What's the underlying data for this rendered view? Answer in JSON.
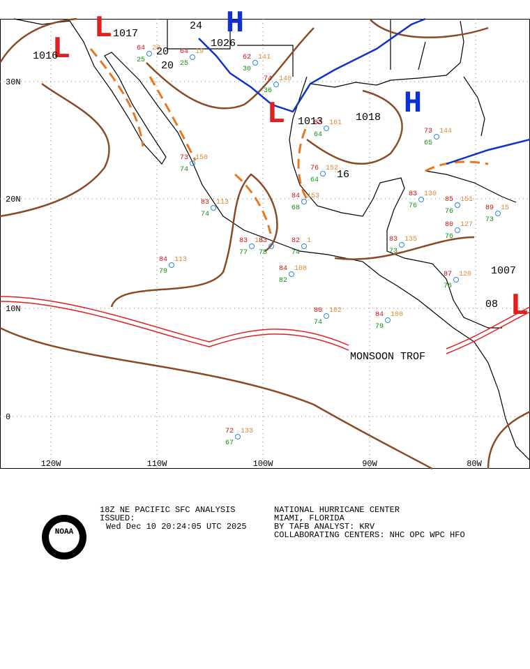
{
  "map": {
    "lat_labels": [
      "30N",
      "20N",
      "10N",
      "0"
    ],
    "lon_labels": [
      "120W",
      "110W",
      "100W",
      "90W",
      "80W"
    ],
    "centers": [
      "H",
      "H",
      "L",
      "L",
      "L",
      "L"
    ],
    "pressures": [
      "1017",
      "1016",
      "1026",
      "1013",
      "1018",
      "1007",
      "16",
      "08"
    ],
    "isobar_labels": [
      "24",
      "20",
      "20"
    ],
    "annotation": "MONSOON TROF",
    "stations": [
      {
        "t": "73",
        "d": "74",
        "p": "150"
      },
      {
        "t": "83",
        "d": "74",
        "p": "113"
      },
      {
        "t": "83",
        "d": "77",
        "p": "13"
      },
      {
        "t": "83",
        "d": "78",
        "p": ""
      },
      {
        "t": "82",
        "d": "74",
        "p": "1"
      },
      {
        "t": "84",
        "d": "79",
        "p": "113"
      },
      {
        "t": "84",
        "d": "82",
        "p": "108"
      },
      {
        "t": "80",
        "d": "74",
        "p": "102"
      },
      {
        "t": "84",
        "d": "79",
        "p": "100"
      },
      {
        "t": "72",
        "d": "67",
        "p": "133"
      },
      {
        "t": "76",
        "d": "64",
        "p": "152"
      },
      {
        "t": "84",
        "d": "68",
        "p": "153"
      },
      {
        "t": "83",
        "d": "76",
        "p": "130"
      },
      {
        "t": "85",
        "d": "76",
        "p": "151"
      },
      {
        "t": "80",
        "d": "76",
        "p": "127"
      },
      {
        "t": "83",
        "d": "73",
        "p": "135"
      },
      {
        "t": "87",
        "d": "76",
        "p": "120"
      },
      {
        "t": "89",
        "d": "73",
        "p": "15"
      },
      {
        "t": "64",
        "d": "25",
        "p": "20"
      },
      {
        "t": "64",
        "d": "25",
        "p": "19"
      },
      {
        "t": "62",
        "d": "30",
        "p": "141"
      },
      {
        "t": "74",
        "d": "36",
        "p": "140"
      },
      {
        "t": "83",
        "d": "64",
        "p": "161"
      },
      {
        "t": "73",
        "d": "65",
        "p": "144"
      }
    ]
  },
  "footer": {
    "left": [
      "18Z NE PACIFIC SFC ANALYSIS",
      "ISSUED:",
      "Wed Dec 10 20:24:05 UTC 2025"
    ],
    "right": [
      "NATIONAL HURRICANE CENTER",
      "MIAMI, FLORIDA",
      "BY TAFB ANALYST: KRV",
      "COLLABORATING CENTERS: NHC OPC WPC HFO"
    ],
    "logo": "NOAA"
  }
}
